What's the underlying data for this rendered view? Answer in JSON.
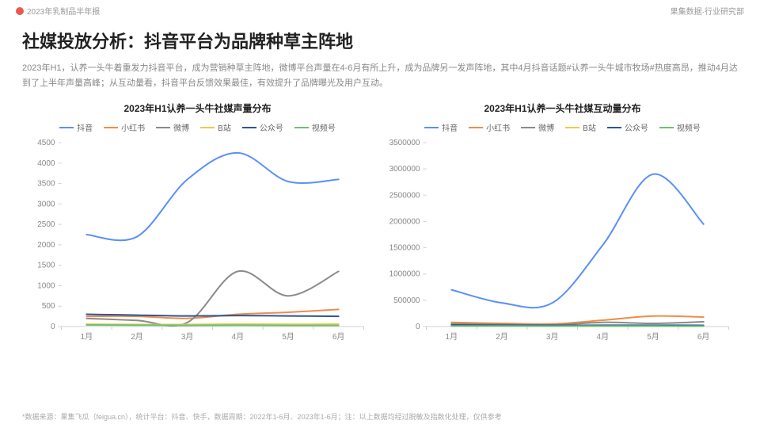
{
  "header": {
    "doc_title": "2023年乳制品半年报",
    "department": "果集数据·行业研究部"
  },
  "headline": "社媒投放分析：抖音平台为品牌种草主阵地",
  "description": "2023年H1，认养一头牛着重发力抖音平台，成为营销种草主阵地，微博平台声量在4-6月有所上升，成为品牌另一发声阵地，其中4月抖音话题#认养一头牛城市牧场#热度高昂，推动4月达到了上半年声量高峰；从互动量看，抖音平台反馈效果最佳，有效提升了品牌曝光及用户互动。",
  "legend_series": [
    {
      "name": "抖音",
      "color": "#5b8ff9"
    },
    {
      "name": "小红书",
      "color": "#f08c4a"
    },
    {
      "name": "微博",
      "color": "#8a8a8a"
    },
    {
      "name": "B站",
      "color": "#f2c94c"
    },
    {
      "name": "公众号",
      "color": "#2f5597"
    },
    {
      "name": "视频号",
      "color": "#6fbf73"
    }
  ],
  "chart_left": {
    "title": "2023年H1认养一头牛社媒声量分布",
    "type": "line",
    "categories": [
      "1月",
      "2月",
      "3月",
      "4月",
      "5月",
      "6月"
    ],
    "ylim": [
      0,
      4500
    ],
    "ytick_step": 500,
    "background_color": "#ffffff",
    "axis_color": "#d0d0d0",
    "tick_color": "#888",
    "fontsize_tick": 10,
    "line_width": 2,
    "smooth": true,
    "series": {
      "抖音": [
        2250,
        2200,
        3600,
        4250,
        3550,
        3600
      ],
      "小红书": [
        250,
        250,
        200,
        300,
        350,
        420
      ],
      "微博": [
        200,
        150,
        100,
        1350,
        750,
        1350
      ],
      "B站": [
        60,
        50,
        50,
        60,
        55,
        60
      ],
      "公众号": [
        300,
        280,
        260,
        270,
        260,
        250
      ],
      "视频号": [
        40,
        35,
        30,
        35,
        30,
        30
      ]
    }
  },
  "chart_right": {
    "title": "2023年H1认养一头牛社媒互动量分布",
    "type": "line",
    "categories": [
      "1月",
      "2月",
      "3月",
      "4月",
      "5月",
      "6月"
    ],
    "ylim": [
      0,
      3500000
    ],
    "ytick_step": 500000,
    "background_color": "#ffffff",
    "axis_color": "#d0d0d0",
    "tick_color": "#888",
    "fontsize_tick": 10,
    "line_width": 2,
    "smooth": true,
    "series": {
      "抖音": [
        700000,
        450000,
        450000,
        1550000,
        2900000,
        1950000
      ],
      "小红书": [
        80000,
        60000,
        50000,
        120000,
        200000,
        180000
      ],
      "微博": [
        50000,
        40000,
        30000,
        80000,
        60000,
        90000
      ],
      "B站": [
        20000,
        18000,
        15000,
        20000,
        18000,
        20000
      ],
      "公众号": [
        30000,
        25000,
        22000,
        25000,
        24000,
        23000
      ],
      "视频号": [
        10000,
        9000,
        8000,
        9000,
        8500,
        8000
      ]
    }
  },
  "footnote": "*数据来源：果集飞瓜（feigua.cn），统计平台：抖音、快手，数据周期：2022年1-6月、2023年1-6月；注：以上数据均经过脱敏及指数化处理，仅供参考"
}
